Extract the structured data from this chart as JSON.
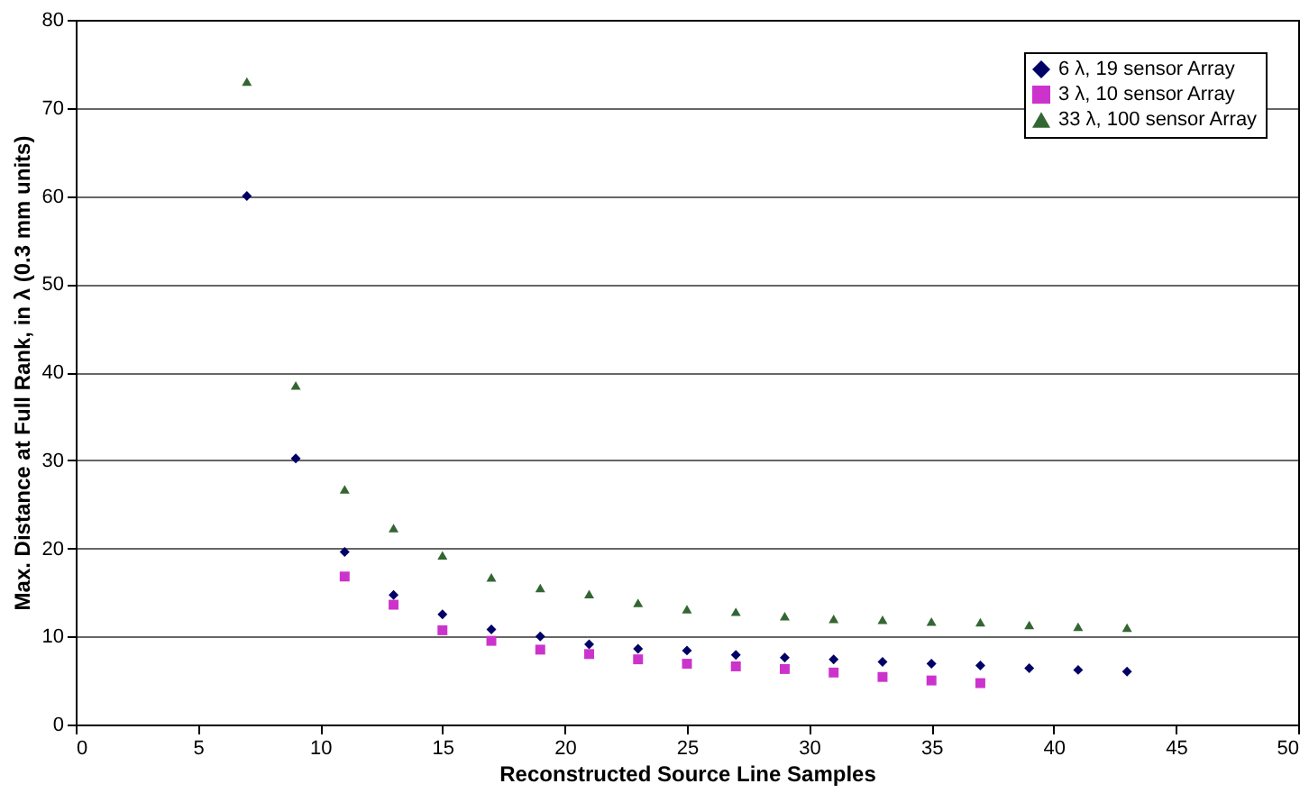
{
  "chart_data": {
    "type": "scatter",
    "xlabel": "Reconstructed Source Line Samples",
    "ylabel": "Max. Distance at Full Rank, in λ (0.3 mm units)",
    "xlim": [
      0,
      50
    ],
    "xticks": [
      0,
      5,
      10,
      15,
      20,
      25,
      30,
      35,
      40,
      45,
      50
    ],
    "ylim": [
      0,
      80
    ],
    "yticks": [
      0,
      10,
      20,
      30,
      40,
      50,
      60,
      70,
      80
    ],
    "grid": "y",
    "legend": "top right",
    "series": [
      {
        "name": "6 λ, 19 sensor Array",
        "color": "#000066",
        "marker": "diamond",
        "x": [
          7,
          9,
          11,
          13,
          15,
          17,
          19,
          21,
          23,
          25,
          27,
          29,
          31,
          33,
          35,
          37,
          39,
          41,
          43
        ],
        "values": [
          60,
          30.2,
          19.6,
          14.7,
          12.5,
          10.8,
          10,
          9.1,
          8.6,
          8.4,
          7.9,
          7.6,
          7.4,
          7.1,
          6.9,
          6.7,
          6.4,
          6.2,
          6.0
        ]
      },
      {
        "name": "3 λ, 10 sensor Array",
        "color": "#cc33cc",
        "marker": "square",
        "x": [
          11,
          13,
          15,
          17,
          19,
          21,
          23,
          25,
          27,
          29,
          31,
          33,
          35,
          37
        ],
        "values": [
          16.8,
          13.6,
          10.7,
          9.5,
          8.5,
          8.0,
          7.4,
          6.9,
          6.6,
          6.3,
          5.9,
          5.4,
          5.0,
          4.7
        ]
      },
      {
        "name": "33 λ, 100 sensor Array",
        "color": "#336633",
        "marker": "triangle",
        "x": [
          7,
          9,
          11,
          13,
          15,
          17,
          19,
          21,
          23,
          25,
          27,
          29,
          31,
          33,
          35,
          37,
          39,
          41,
          43
        ],
        "values": [
          73,
          38.5,
          26.7,
          22.3,
          19.2,
          16.7,
          15.5,
          14.8,
          13.8,
          13.1,
          12.8,
          12.3,
          12.0,
          11.9,
          11.7,
          11.6,
          11.3,
          11.1,
          11.0
        ]
      }
    ]
  }
}
